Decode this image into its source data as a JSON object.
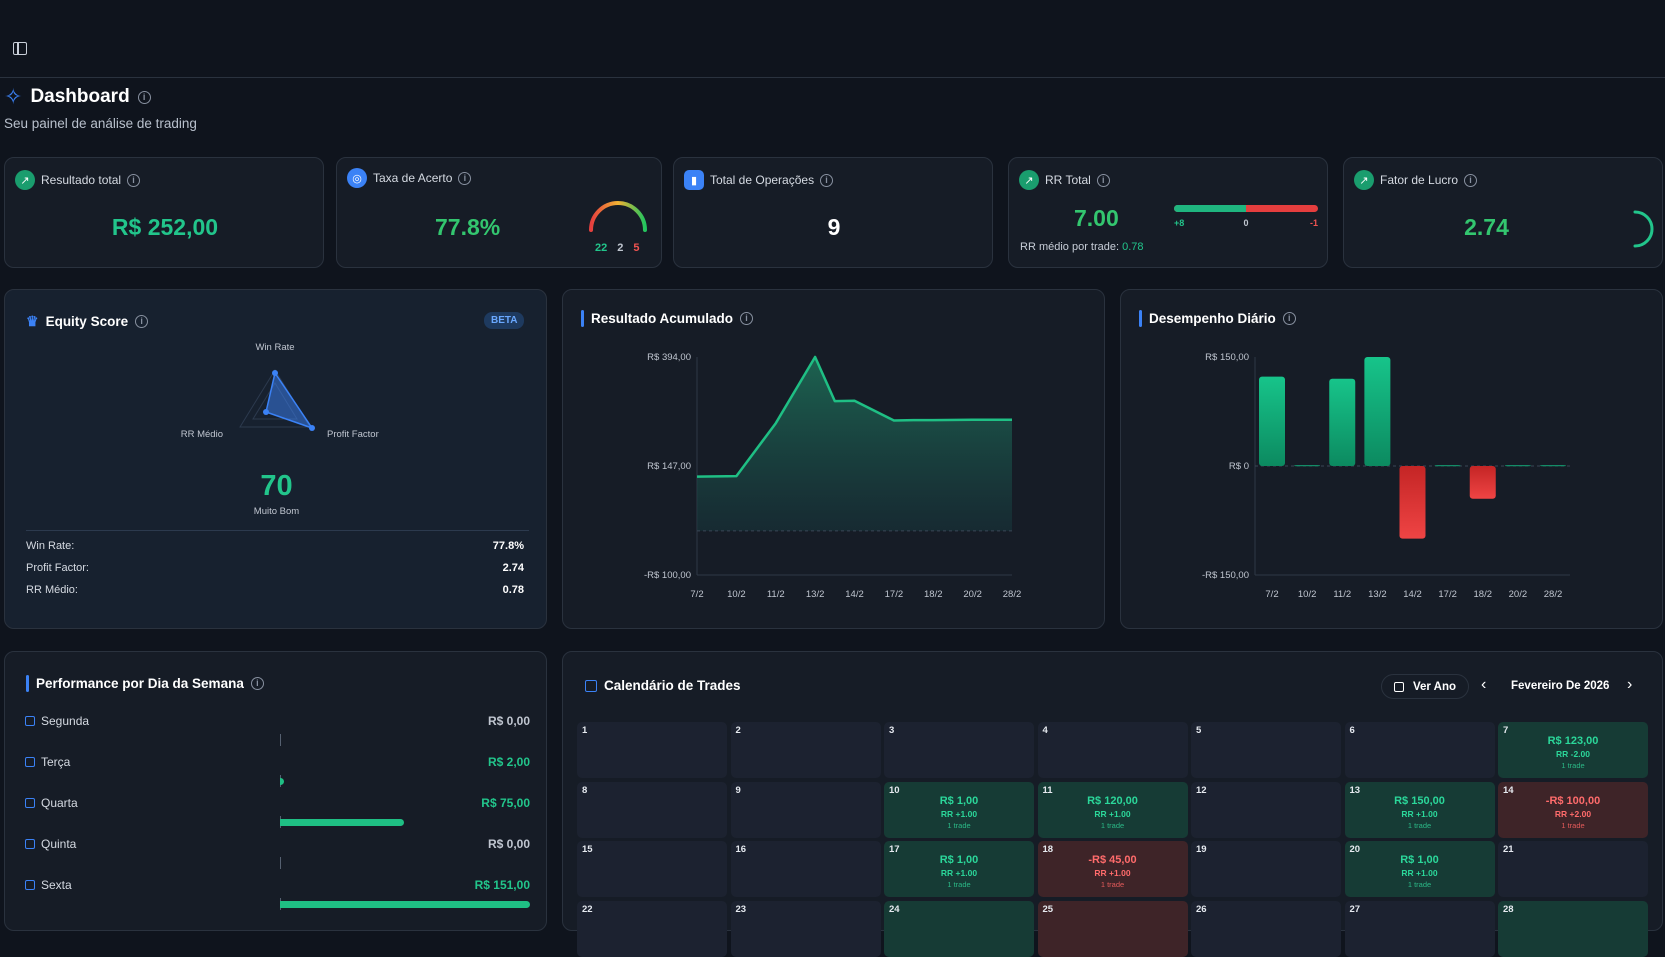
{
  "page": {
    "title": "Dashboard",
    "subtitle": "Seu painel de análise de trading"
  },
  "kpis": {
    "resultado": {
      "label": "Resultado total",
      "value": "R$ 252,00"
    },
    "taxa": {
      "label": "Taxa de Acerto",
      "value": "77.8%",
      "gauge_wins": "22",
      "gauge_neutral": "2",
      "gauge_losses": "5"
    },
    "operacoes": {
      "label": "Total de Operações",
      "value": "9"
    },
    "rr": {
      "label": "RR Total",
      "value": "7.00",
      "bar_pos": "+8",
      "bar_zero": "0",
      "bar_neg": "-1",
      "avg_label": "RR médio por trade:",
      "avg_value": "0.78",
      "bar_positive_share": 0.5
    },
    "fator": {
      "label": "Fator de Lucro",
      "value": "2.74"
    }
  },
  "equity": {
    "title": "Equity Score",
    "badge": "BETA",
    "radar": {
      "axis_top": "Win Rate",
      "axis_right": "Profit Factor",
      "axis_left": "RR Médio"
    },
    "score": "70",
    "rating": "Muito Bom",
    "rows": [
      {
        "label": "Win Rate:",
        "value": "77.8%"
      },
      {
        "label": "Profit Factor:",
        "value": "2.74"
      },
      {
        "label": "RR Médio:",
        "value": "0.78"
      }
    ]
  },
  "acumulado": {
    "title": "Resultado Acumulado"
  },
  "diario": {
    "title": "Desempenho Diário"
  },
  "chart_data": [
    {
      "type": "area",
      "title": "Resultado Acumulado",
      "y_ticks": [
        "R$ 394,00",
        "R$ 147,00",
        "-R$ 100,00"
      ],
      "ylim": [
        -100,
        394
      ],
      "categories": [
        "7/2",
        "10/2",
        "11/2",
        "13/2",
        "14/2",
        "17/2",
        "18/2",
        "20/2",
        "28/2"
      ],
      "x": [
        0,
        1,
        2,
        3,
        3.5,
        4,
        5,
        5.5,
        6,
        7,
        8
      ],
      "values": [
        123,
        124,
        244,
        394,
        294,
        295,
        250,
        251,
        251,
        252,
        252
      ]
    },
    {
      "type": "bar",
      "title": "Desempenho Diário",
      "y_ticks": [
        "R$ 150,00",
        "R$ 0",
        "-R$ 150,00"
      ],
      "ylim": [
        -150,
        150
      ],
      "categories": [
        "7/2",
        "10/2",
        "11/2",
        "13/2",
        "14/2",
        "17/2",
        "18/2",
        "20/2",
        "28/2"
      ],
      "values": [
        123,
        1,
        120,
        150,
        -100,
        1,
        -45,
        1,
        1
      ]
    }
  ],
  "weekday": {
    "title": "Performance por Dia da Semana",
    "items": [
      {
        "label": "Segunda",
        "value": "R$ 0,00",
        "amount": 0
      },
      {
        "label": "Terça",
        "value": "R$ 2,00",
        "amount": 2
      },
      {
        "label": "Quarta",
        "value": "R$ 75,00",
        "amount": 75
      },
      {
        "label": "Quinta",
        "value": "R$ 0,00",
        "amount": 0
      },
      {
        "label": "Sexta",
        "value": "R$ 151,00",
        "amount": 151
      }
    ]
  },
  "calendar": {
    "title": "Calendário de Trades",
    "view_year": "Ver Ano",
    "month": "Fevereiro De 2026",
    "days": [
      {
        "d": "1"
      },
      {
        "d": "2"
      },
      {
        "d": "3"
      },
      {
        "d": "4"
      },
      {
        "d": "5"
      },
      {
        "d": "6"
      },
      {
        "d": "7",
        "pnl": "R$ 123,00",
        "rr": "RR -2.00",
        "trades": "1 trade",
        "status": "win"
      },
      {
        "d": "8"
      },
      {
        "d": "9"
      },
      {
        "d": "10",
        "pnl": "R$ 1,00",
        "rr": "RR +1.00",
        "trades": "1 trade",
        "status": "win"
      },
      {
        "d": "11",
        "pnl": "R$ 120,00",
        "rr": "RR +1.00",
        "trades": "1 trade",
        "status": "win"
      },
      {
        "d": "12"
      },
      {
        "d": "13",
        "pnl": "R$ 150,00",
        "rr": "RR +1.00",
        "trades": "1 trade",
        "status": "win"
      },
      {
        "d": "14",
        "pnl": "-R$ 100,00",
        "rr": "RR +2.00",
        "trades": "1 trade",
        "status": "loss"
      },
      {
        "d": "15"
      },
      {
        "d": "16"
      },
      {
        "d": "17",
        "pnl": "R$ 1,00",
        "rr": "RR +1.00",
        "trades": "1 trade",
        "status": "win"
      },
      {
        "d": "18",
        "pnl": "-R$ 45,00",
        "rr": "RR +1.00",
        "trades": "1 trade",
        "status": "loss"
      },
      {
        "d": "19"
      },
      {
        "d": "20",
        "pnl": "R$ 1,00",
        "rr": "RR +1.00",
        "trades": "1 trade",
        "status": "win"
      },
      {
        "d": "21"
      },
      {
        "d": "22"
      },
      {
        "d": "23"
      },
      {
        "d": "24",
        "status": "win"
      },
      {
        "d": "25",
        "status": "loss"
      },
      {
        "d": "26"
      },
      {
        "d": "27"
      },
      {
        "d": "28",
        "status": "win"
      }
    ]
  },
  "colors": {
    "accent": "#3b82f6",
    "positive": "#22c58b",
    "negative": "#e53e3e"
  }
}
